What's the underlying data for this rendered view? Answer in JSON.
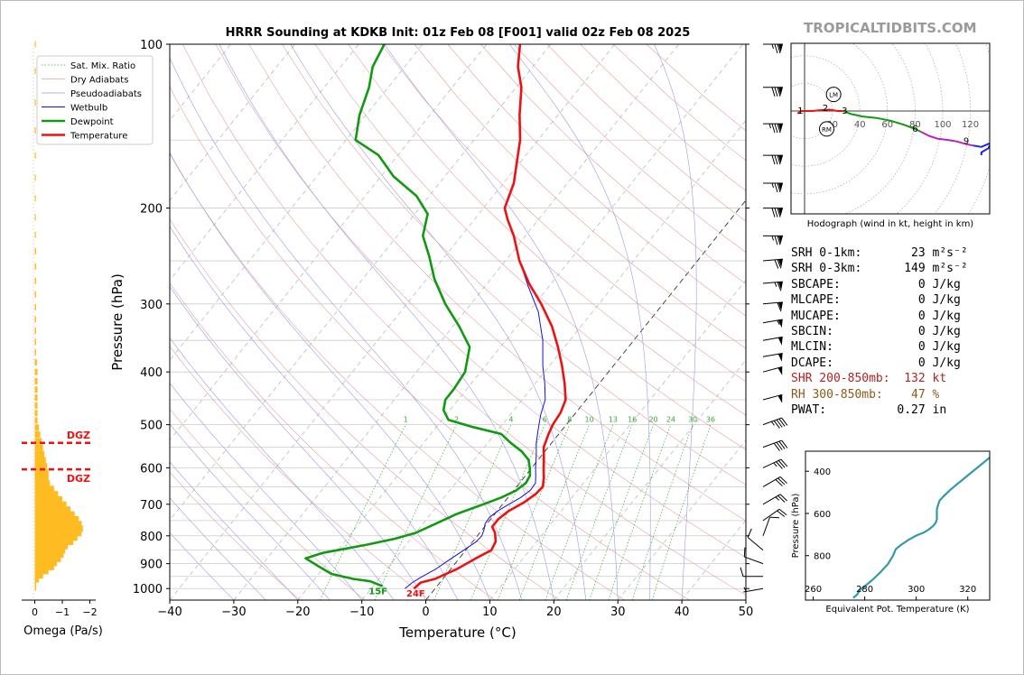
{
  "brand": "TROPICALTIDBITS.COM",
  "title": "HRRR Sounding at KDKB Init: 01z Feb 08 [F001] valid 02z Feb 08 2025",
  "colors": {
    "temperature": "#ee1111",
    "dewpoint": "#119911",
    "wetbulb": "#1111dd",
    "omega_bar": "#ffbb22",
    "dgz": "#ee1111",
    "hodo_0_1": "#ee1111",
    "hodo_1_3": "#ee1111",
    "hodo_3_6": "#119911",
    "hodo_6_9": "#bb22bb",
    "hodo_9_plus": "#2222ee",
    "theta_e": "#3399aa",
    "shr_text": "#b22222",
    "rh_text": "#8b5a1a"
  },
  "chart_data": [
    {
      "type": "line",
      "name": "skew-t",
      "xlabel": "Temperature (°C)",
      "ylabel": "Pressure (hPa)",
      "xlim": [
        -40,
        50
      ],
      "ylim": [
        1050,
        100
      ],
      "y_scale": "log",
      "x_ticks": [
        "−40",
        "−30",
        "−20",
        "−10",
        "0",
        "10",
        "20",
        "30",
        "40",
        "50"
      ],
      "y_ticks": [
        "100",
        "200",
        "300",
        "400",
        "500",
        "600",
        "700",
        "800",
        "900",
        "1000"
      ],
      "legend": {
        "placement": "top-left",
        "entries": [
          "Sat. Mix. Ratio",
          "Dry Adiabats",
          "Pseudoadiabats",
          "Wetbulb",
          "Dewpoint",
          "Temperature"
        ]
      },
      "mixing_ratio_labels": [
        "1",
        "2",
        "4",
        "6",
        "8",
        "10",
        "13",
        "16",
        "20",
        "24",
        "30",
        "36"
      ],
      "surface_labels": {
        "dewpoint": "15F",
        "temperature": "24F"
      },
      "series": [
        {
          "name": "Temperature",
          "points": [
            [
              -3.3,
              1000
            ],
            [
              -3.0,
              975
            ],
            [
              -1.2,
              960
            ],
            [
              1.0,
              920
            ],
            [
              2.6,
              880
            ],
            [
              4.0,
              850
            ],
            [
              3.6,
              820
            ],
            [
              2.4,
              790
            ],
            [
              1.2,
              770
            ],
            [
              1.2,
              745
            ],
            [
              1.8,
              720
            ],
            [
              3.1,
              695
            ],
            [
              3.9,
              670
            ],
            [
              4.1,
              650
            ],
            [
              3.1,
              625
            ],
            [
              2.1,
              605
            ],
            [
              0.9,
              580
            ],
            [
              -0.7,
              550
            ],
            [
              -1.6,
              520
            ],
            [
              -2.1,
              500
            ],
            [
              -2.4,
              475
            ],
            [
              -3.2,
              450
            ],
            [
              -5.4,
              420
            ],
            [
              -8.0,
              390
            ],
            [
              -11.0,
              360
            ],
            [
              -14.5,
              330
            ],
            [
              -19.0,
              300
            ],
            [
              -23.5,
              275
            ],
            [
              -27.8,
              250
            ],
            [
              -31.8,
              225
            ],
            [
              -34.8,
              210
            ],
            [
              -36.7,
              200
            ],
            [
              -38.4,
              180
            ],
            [
              -40.5,
              165
            ],
            [
              -42.8,
              150
            ],
            [
              -46.0,
              135
            ],
            [
              -49.2,
              120
            ],
            [
              -52.3,
              110
            ],
            [
              -54.8,
              100
            ]
          ]
        },
        {
          "name": "Dewpoint",
          "points": [
            [
              -8.5,
              990
            ],
            [
              -11.0,
              970
            ],
            [
              -14.0,
              960
            ],
            [
              -18.0,
              940
            ],
            [
              -21.0,
              910
            ],
            [
              -24.0,
              880
            ],
            [
              -22.0,
              860
            ],
            [
              -16.0,
              830
            ],
            [
              -12.5,
              810
            ],
            [
              -10.0,
              790
            ],
            [
              -8.0,
              760
            ],
            [
              -6.0,
              730
            ],
            [
              -3.0,
              700
            ],
            [
              -1.0,
              680
            ],
            [
              0.4,
              660
            ],
            [
              1.0,
              640
            ],
            [
              0.7,
              620
            ],
            [
              -0.3,
              600
            ],
            [
              -1.5,
              580
            ],
            [
              -3.6,
              560
            ],
            [
              -6.4,
              540
            ],
            [
              -9.0,
              520
            ],
            [
              -14.3,
              505
            ],
            [
              -19.0,
              490
            ],
            [
              -21.0,
              470
            ],
            [
              -22.0,
              450
            ],
            [
              -22.0,
              430
            ],
            [
              -22.4,
              400
            ],
            [
              -24.8,
              360
            ],
            [
              -29.0,
              330
            ],
            [
              -34.0,
              300
            ],
            [
              -38.8,
              270
            ],
            [
              -42.5,
              245
            ],
            [
              -46.0,
              225
            ],
            [
              -48.0,
              205
            ],
            [
              -52.0,
              190
            ],
            [
              -58.0,
              175
            ],
            [
              -63.0,
              160
            ],
            [
              -68.5,
              150
            ],
            [
              -71.0,
              135
            ],
            [
              -73.0,
              120
            ],
            [
              -75.0,
              110
            ],
            [
              -76.0,
              100
            ]
          ]
        },
        {
          "name": "Wetbulb",
          "points": [
            [
              -4.7,
              1000
            ],
            [
              -4.3,
              975
            ],
            [
              -3.5,
              950
            ],
            [
              -2.3,
              920
            ],
            [
              -1.5,
              890
            ],
            [
              -0.6,
              860
            ],
            [
              0.6,
              820
            ],
            [
              0.7,
              800
            ],
            [
              0.3,
              780
            ],
            [
              -0.3,
              760
            ],
            [
              -0.4,
              740
            ],
            [
              0.1,
              720
            ],
            [
              1.0,
              700
            ],
            [
              2.0,
              680
            ],
            [
              2.6,
              660
            ],
            [
              2.5,
              640
            ],
            [
              1.6,
              620
            ],
            [
              0.6,
              600
            ],
            [
              -0.8,
              570
            ],
            [
              -2.4,
              540
            ],
            [
              -3.8,
              510
            ],
            [
              -5.2,
              480
            ],
            [
              -6.4,
              450
            ],
            [
              -8.5,
              420
            ],
            [
              -11.0,
              390
            ],
            [
              -14.2,
              350
            ],
            [
              -18.5,
              310
            ],
            [
              -23.0,
              280
            ],
            [
              -27.8,
              250
            ],
            [
              -31.8,
              225
            ],
            [
              -34.8,
              210
            ],
            [
              -36.7,
              200
            ],
            [
              -38.4,
              180
            ],
            [
              -40.5,
              165
            ],
            [
              -42.8,
              150
            ],
            [
              -46.0,
              135
            ],
            [
              -49.2,
              120
            ],
            [
              -52.3,
              110
            ],
            [
              -54.8,
              100
            ]
          ]
        }
      ]
    },
    {
      "type": "bar",
      "name": "omega",
      "xlabel": "Omega (Pa/s)",
      "xlim": [
        0.3,
        -2.2
      ],
      "x_ticks": [
        "0",
        "−1",
        "−2"
      ],
      "dgz_label": "DGZ",
      "dgz_pressures": [
        540,
        604
      ],
      "values": [
        [
          995,
          -0.05
        ],
        [
          980,
          -0.05
        ],
        [
          962,
          -0.15
        ],
        [
          946,
          -0.3
        ],
        [
          929,
          -0.5
        ],
        [
          913,
          -0.7
        ],
        [
          898,
          -0.8
        ],
        [
          882,
          -0.95
        ],
        [
          866,
          -1.05
        ],
        [
          851,
          -1.1
        ],
        [
          836,
          -1.2
        ],
        [
          821,
          -1.4
        ],
        [
          806,
          -1.55
        ],
        [
          791,
          -1.7
        ],
        [
          776,
          -1.75
        ],
        [
          761,
          -1.7
        ],
        [
          746,
          -1.6
        ],
        [
          731,
          -1.45
        ],
        [
          716,
          -1.3
        ],
        [
          701,
          -1.15
        ],
        [
          686,
          -1.0
        ],
        [
          671,
          -0.85
        ],
        [
          656,
          -0.7
        ],
        [
          641,
          -0.55
        ],
        [
          626,
          -0.5
        ],
        [
          611,
          -0.5
        ],
        [
          596,
          -0.45
        ],
        [
          581,
          -0.4
        ],
        [
          566,
          -0.35
        ],
        [
          551,
          -0.3
        ],
        [
          536,
          -0.25
        ],
        [
          521,
          -0.2
        ],
        [
          506,
          -0.15
        ],
        [
          491,
          -0.1
        ],
        [
          476,
          -0.1
        ],
        [
          461,
          -0.1
        ],
        [
          446,
          -0.1
        ],
        [
          431,
          -0.1
        ],
        [
          416,
          -0.1
        ],
        [
          400,
          -0.1
        ],
        [
          384,
          -0.08
        ],
        [
          368,
          -0.05
        ],
        [
          352,
          -0.05
        ],
        [
          336,
          -0.05
        ],
        [
          320,
          -0.05
        ],
        [
          304,
          -0.05
        ],
        [
          288,
          -0.05
        ],
        [
          272,
          -0.05
        ],
        [
          256,
          -0.05
        ],
        [
          240,
          -0.05
        ],
        [
          224,
          -0.04
        ],
        [
          208,
          -0.03
        ],
        [
          192,
          -0.03
        ],
        [
          176,
          -0.02
        ],
        [
          160,
          -0.02
        ],
        [
          144,
          -0.02
        ],
        [
          128,
          -0.02
        ],
        [
          112,
          -0.02
        ],
        [
          100,
          -0.02
        ]
      ]
    },
    {
      "type": "line",
      "name": "hodograph",
      "caption": "Hodograph (wind in kt, height in km)",
      "ring_labels": [
        "20",
        "40",
        "60",
        "80",
        "100",
        "120"
      ],
      "storm_motion_labels": [
        "LM",
        "RM"
      ],
      "height_labels": [
        "1",
        "2",
        "3",
        "6",
        "9"
      ],
      "series": [
        {
          "name": "0-1 km",
          "points": [
            [
              -5,
              -2
            ],
            [
              -3,
              0
            ],
            [
              -1,
              0
            ]
          ]
        },
        {
          "name": "1-3 km",
          "points": [
            [
              -1,
              0
            ],
            [
              6,
              0
            ],
            [
              10,
              0.5
            ],
            [
              18,
              1
            ],
            [
              24,
              0
            ],
            [
              28,
              0
            ]
          ]
        },
        {
          "name": "3-6 km",
          "points": [
            [
              28,
              0
            ],
            [
              33,
              -2
            ],
            [
              42,
              -4
            ],
            [
              52,
              -5
            ],
            [
              62,
              -7
            ],
            [
              72,
              -10
            ],
            [
              80,
              -13
            ],
            [
              84,
              -15
            ]
          ]
        },
        {
          "name": "6-9 km",
          "points": [
            [
              84,
              -15
            ],
            [
              90,
              -18
            ],
            [
              96,
              -20
            ],
            [
              104,
              -21
            ],
            [
              110,
              -22
            ],
            [
              117,
              -24
            ],
            [
              122,
              -25
            ]
          ]
        },
        {
          "name": "9+ km",
          "points": [
            [
              122,
              -25
            ],
            [
              128,
              -26
            ],
            [
              135,
              -23
            ],
            [
              133,
              -27
            ],
            [
              128,
              -30
            ],
            [
              128,
              -32
            ]
          ]
        }
      ]
    },
    {
      "type": "line",
      "name": "theta-e profile",
      "xlabel": "Equivalent Pot. Temperature (K)",
      "ylabel": "Pressure (hPa)",
      "x_ticks": [
        "260",
        "280",
        "300",
        "320"
      ],
      "y_ticks": [
        "400",
        "600",
        "800"
      ],
      "points": [
        [
          275.5,
          1000
        ],
        [
          277,
          985
        ],
        [
          278,
          965
        ],
        [
          280.5,
          940
        ],
        [
          283,
          915
        ],
        [
          286,
          880
        ],
        [
          289,
          840
        ],
        [
          291,
          800
        ],
        [
          292,
          770
        ],
        [
          294,
          750
        ],
        [
          297,
          725
        ],
        [
          300,
          705
        ],
        [
          303,
          690
        ],
        [
          305,
          675
        ],
        [
          306.5,
          660
        ],
        [
          307.5,
          645
        ],
        [
          308,
          628
        ],
        [
          308,
          600
        ],
        [
          308,
          580
        ],
        [
          308.5,
          560
        ],
        [
          309,
          540
        ],
        [
          310.5,
          520
        ],
        [
          313,
          490
        ],
        [
          316,
          460
        ],
        [
          318,
          440
        ],
        [
          320,
          420
        ],
        [
          323,
          390
        ],
        [
          326,
          360
        ],
        [
          328,
          340
        ],
        [
          330,
          320
        ],
        [
          332,
          300
        ]
      ]
    }
  ],
  "wind_barbs": [
    [
      100,
      270,
      75
    ],
    [
      120,
      270,
      80
    ],
    [
      140,
      270,
      85
    ],
    [
      160,
      270,
      80
    ],
    [
      180,
      270,
      75
    ],
    [
      200,
      270,
      80
    ],
    [
      225,
      270,
      75
    ],
    [
      250,
      265,
      70
    ],
    [
      275,
      265,
      65
    ],
    [
      300,
      265,
      60
    ],
    [
      325,
      260,
      55
    ],
    [
      350,
      260,
      50
    ],
    [
      375,
      260,
      50
    ],
    [
      400,
      255,
      50
    ],
    [
      450,
      255,
      50
    ],
    [
      500,
      250,
      45
    ],
    [
      550,
      250,
      40
    ],
    [
      600,
      245,
      35
    ],
    [
      650,
      240,
      30
    ],
    [
      700,
      240,
      25
    ],
    [
      750,
      235,
      20
    ],
    [
      800,
      200,
      10
    ],
    [
      850,
      130,
      10
    ],
    [
      900,
      110,
      10
    ],
    [
      950,
      90,
      10
    ],
    [
      1000,
      80,
      5
    ]
  ],
  "stats": {
    "srh01": "SRH 0-1km:       23 m²s⁻²",
    "srh03": "SRH 0-3km:      149 m²s⁻²",
    "sbcape": "SBCAPE:           0 J/kg",
    "mlcape": "MLCAPE:           0 J/kg",
    "mucape": "MUCAPE:           0 J/kg",
    "sbcin": "SBCIN:            0 J/kg",
    "mlcin": "MLCIN:            0 J/kg",
    "dcape": "DCAPE:            0 J/kg",
    "shr": "SHR 200-850mb:  132 kt",
    "rh": "RH 300-850mb:    47 %",
    "pwat": "PWAT:          0.27 in"
  }
}
